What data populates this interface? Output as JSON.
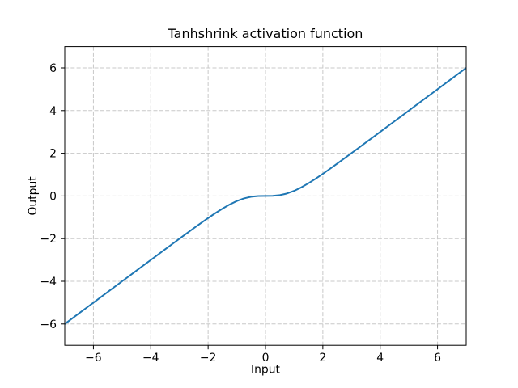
{
  "figure": {
    "background_color": "#ffffff"
  },
  "chart_data": {
    "type": "line",
    "title": "Tanhshrink activation function",
    "xlabel": "Input",
    "ylabel": "Output",
    "xlim": [
      -7,
      7
    ],
    "ylim": [
      -7,
      7
    ],
    "xticks": [
      -6,
      -4,
      -2,
      0,
      2,
      4,
      6
    ],
    "yticks": [
      -6,
      -4,
      -2,
      0,
      2,
      4,
      6
    ],
    "grid": true,
    "grid_linestyle": "dashed",
    "grid_color": "#c8c8c8",
    "spine_color": "#000000",
    "tick_color": "#000000",
    "legend": "none",
    "series": [
      {
        "name": "tanhshrink",
        "color": "#1f77b4",
        "x": [
          -7,
          -6.75,
          -6.5,
          -6.25,
          -6,
          -5.75,
          -5.5,
          -5.25,
          -5,
          -4.75,
          -4.5,
          -4.25,
          -4,
          -3.75,
          -3.5,
          -3.25,
          -3,
          -2.75,
          -2.5,
          -2.25,
          -2,
          -1.75,
          -1.5,
          -1.25,
          -1,
          -0.75,
          -0.5,
          -0.25,
          0,
          0.25,
          0.5,
          0.75,
          1,
          1.25,
          1.5,
          1.75,
          2,
          2.25,
          2.5,
          2.75,
          3,
          3.25,
          3.5,
          3.75,
          4,
          4.25,
          4.5,
          4.75,
          5,
          5.25,
          5.5,
          5.75,
          6,
          6.25,
          6.5,
          6.75,
          7
        ],
        "y": [
          -6.0,
          -5.75,
          -5.5,
          -5.25,
          -5.0001,
          -4.7501,
          -4.5,
          -4.2501,
          -4.0001,
          -3.7502,
          -3.5002,
          -3.2504,
          -3.0007,
          -2.7511,
          -2.5018,
          -2.253,
          -2.0049,
          -1.7582,
          -1.5134,
          -1.272,
          -1.036,
          -0.8086,
          -0.5949,
          -0.4017,
          -0.2384,
          -0.1149,
          -0.0379,
          -0.0051,
          0,
          0.0051,
          0.0379,
          0.1149,
          0.2384,
          0.4017,
          0.5949,
          0.8086,
          1.036,
          1.272,
          1.5134,
          1.7582,
          2.0049,
          2.253,
          2.5018,
          2.7511,
          3.0007,
          3.2504,
          3.5002,
          3.7502,
          4.0001,
          4.2501,
          4.5,
          4.7501,
          5.0001,
          5.25,
          5.5,
          5.75,
          6.0
        ]
      }
    ]
  }
}
